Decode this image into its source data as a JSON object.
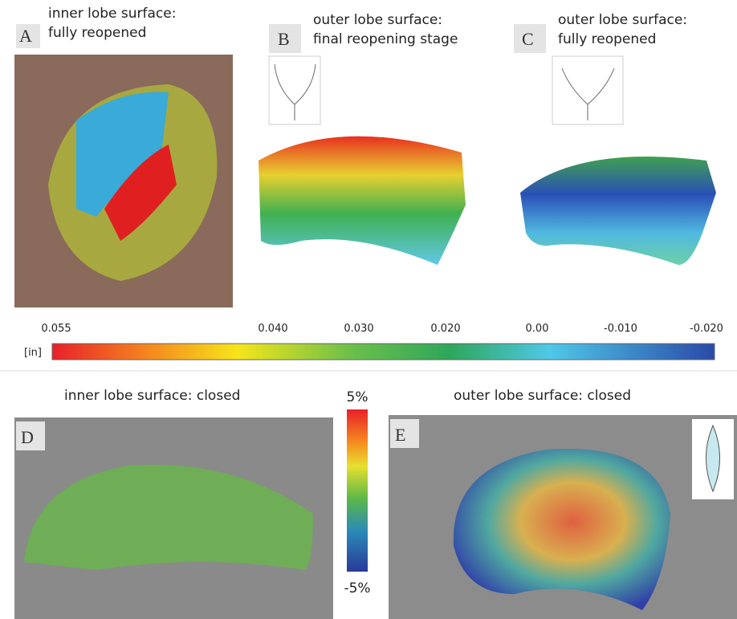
{
  "panels": [
    {
      "letter": "A",
      "title": [
        "inner lobe surface:",
        "fully reopened"
      ]
    },
    {
      "letter": "B",
      "title": [
        "outer lobe surface:",
        "final reopening stage"
      ]
    },
    {
      "letter": "C",
      "title": [
        "outer lobe surface:",
        "fully reopened"
      ]
    },
    {
      "letter": "D",
      "title": [
        "inner lobe surface: closed"
      ]
    },
    {
      "letter": "E",
      "title": [
        "outer lobe surface: closed"
      ]
    }
  ],
  "colorbar": {
    "unit": "[in]",
    "labels": [
      "0.055",
      "0.040",
      "0.030",
      "0.020",
      "0.00",
      "-0.010",
      "-0.020"
    ]
  },
  "strain_scale": {
    "max": "5%",
    "min": "-5%"
  }
}
